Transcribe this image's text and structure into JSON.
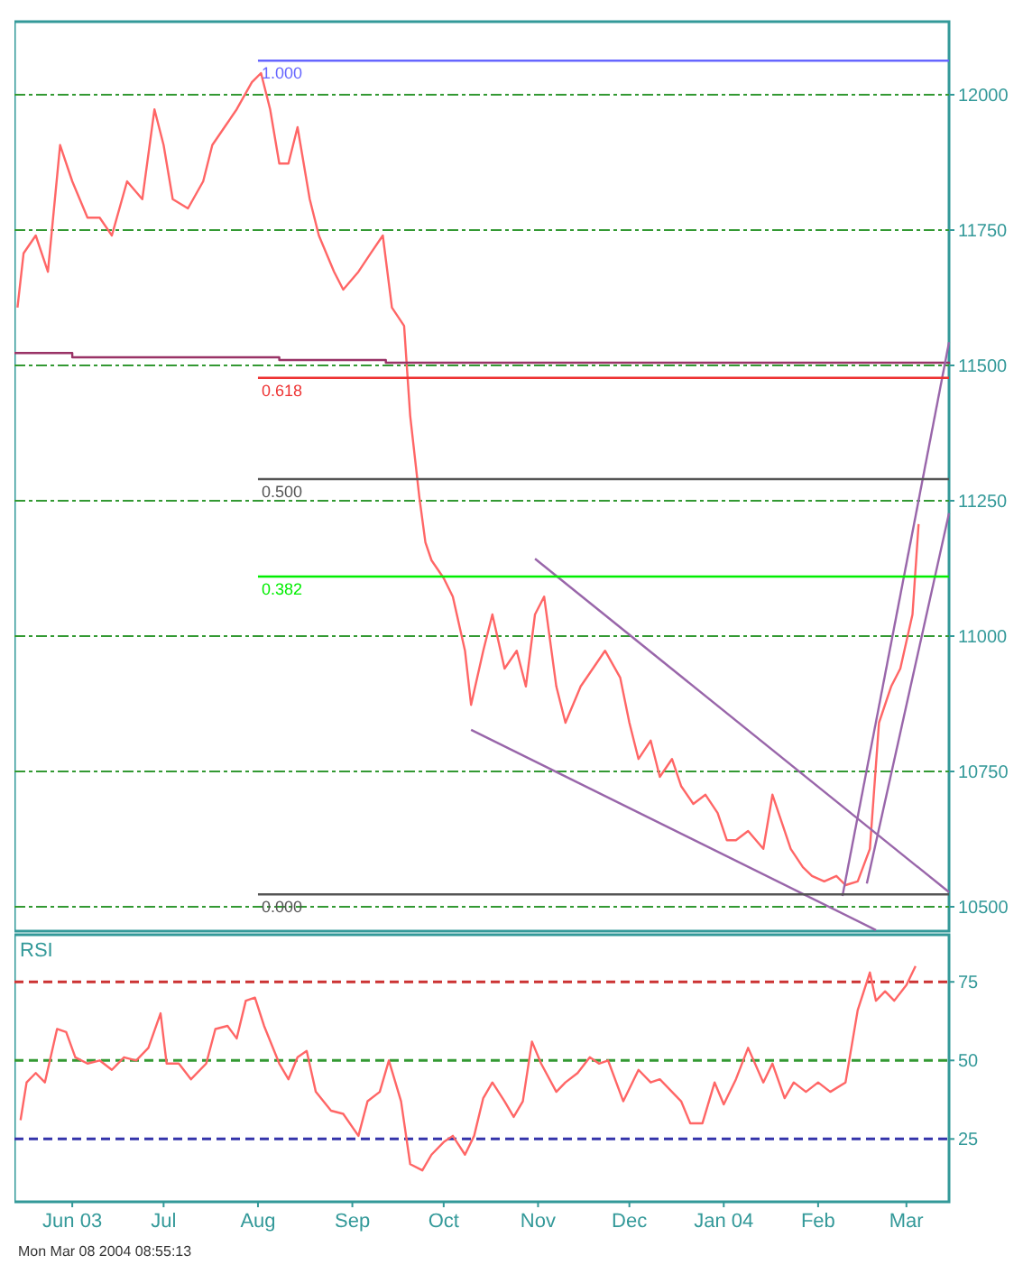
{
  "chart_data": [
    {
      "type": "line",
      "xlim": [
        "2003-05-13",
        "2004-03-15"
      ],
      "ylim": [
        10455,
        12135
      ],
      "yticks": [
        10500,
        10750,
        11000,
        11250,
        11500,
        11750,
        12000
      ],
      "tick_labels": "y",
      "grid": "y",
      "series": [
        {
          "color": "#ff6666",
          "x": [
            "2003-05-14",
            "2003-05-16",
            "2003-05-20",
            "2003-05-24",
            "2003-05-28",
            "2003-06-01",
            "2003-06-06",
            "2003-06-10",
            "2003-06-14",
            "2003-06-19",
            "2003-06-24",
            "2003-06-28",
            "2003-07-01",
            "2003-07-04",
            "2003-07-09",
            "2003-07-14",
            "2003-07-17",
            "2003-07-21",
            "2003-07-25",
            "2003-07-30",
            "2003-08-02",
            "2003-08-05",
            "2003-08-08",
            "2003-08-11",
            "2003-08-14",
            "2003-08-18",
            "2003-08-21",
            "2003-08-26",
            "2003-08-29",
            "2003-09-03",
            "2003-09-07",
            "2003-09-11",
            "2003-09-14",
            "2003-09-18",
            "2003-09-20",
            "2003-09-23",
            "2003-09-25",
            "2003-09-27",
            "2003-10-01",
            "2003-10-04",
            "2003-10-08",
            "2003-10-10",
            "2003-10-14",
            "2003-10-17",
            "2003-10-21",
            "2003-10-25",
            "2003-10-28",
            "2003-10-31",
            "2003-11-03",
            "2003-11-07",
            "2003-11-10",
            "2003-11-15",
            "2003-11-19",
            "2003-11-23",
            "2003-11-28",
            "2003-12-01",
            "2003-12-04",
            "2003-12-08",
            "2003-12-11",
            "2003-12-15",
            "2003-12-18",
            "2003-12-22",
            "2003-12-26",
            "2003-12-30",
            "2004-01-02",
            "2004-01-05",
            "2004-01-09",
            "2004-01-14",
            "2004-01-17",
            "2004-01-20",
            "2004-01-23",
            "2004-01-27",
            "2004-01-30",
            "2004-02-03",
            "2004-02-07",
            "2004-02-10",
            "2004-02-14",
            "2004-02-18",
            "2004-02-21",
            "2004-02-25",
            "2004-02-28",
            "2004-03-03",
            "2004-03-05"
          ],
          "values": [
            11607,
            11707,
            11740,
            11673,
            11907,
            11840,
            11773,
            11773,
            11740,
            11840,
            11807,
            11973,
            11907,
            11807,
            11790,
            11840,
            11907,
            11940,
            11973,
            12023,
            12040,
            11973,
            11873,
            11873,
            11940,
            11807,
            11740,
            11673,
            11640,
            11673,
            11707,
            11740,
            11607,
            11573,
            11407,
            11257,
            11173,
            11140,
            11107,
            11073,
            10973,
            10873,
            10973,
            11040,
            10940,
            10973,
            10907,
            11040,
            11073,
            10907,
            10840,
            10907,
            10940,
            10973,
            10923,
            10840,
            10773,
            10807,
            10740,
            10773,
            10723,
            10690,
            10707,
            10673,
            10623,
            10623,
            10640,
            10607,
            10707,
            10657,
            10607,
            10573,
            10557,
            10547,
            10557,
            10540,
            10547,
            10607,
            10840,
            10907,
            10940,
            11040,
            11207
          ]
        },
        {
          "type": "step",
          "color": "#993366",
          "x": [
            "2003-05-13",
            "2003-06-01",
            "2003-08-08",
            "2003-09-12",
            "2004-03-15"
          ],
          "values": [
            11523,
            11515,
            11510,
            11505,
            11503
          ]
        },
        {
          "color": "#9966aa",
          "x": [
            "2003-10-31",
            "2004-03-15"
          ],
          "values": [
            11143,
            10527
          ]
        },
        {
          "color": "#9966aa",
          "x": [
            "2003-10-10",
            "2004-02-20"
          ],
          "values": [
            10827,
            10457
          ]
        },
        {
          "color": "#9966aa",
          "x": [
            "2004-02-09",
            "2004-03-15"
          ],
          "values": [
            10520,
            11543
          ]
        },
        {
          "color": "#9966aa",
          "x": [
            "2004-02-17",
            "2004-03-15"
          ],
          "values": [
            10543,
            11227
          ]
        },
        {
          "type": "line",
          "color": "#6666ff",
          "x": [
            "2003-08-01",
            "2004-03-15"
          ],
          "values": [
            12063,
            12063
          ]
        },
        {
          "type": "line",
          "color": "#ee3333",
          "x": [
            "2003-08-01",
            "2004-03-15"
          ],
          "values": [
            11477,
            11477
          ]
        },
        {
          "type": "line",
          "color": "#555555",
          "x": [
            "2003-08-01",
            "2004-03-15"
          ],
          "values": [
            11290,
            11290
          ]
        },
        {
          "type": "line",
          "color": "#00ee00",
          "x": [
            "2003-08-01",
            "2004-03-15"
          ],
          "values": [
            11110,
            11110
          ]
        },
        {
          "type": "line",
          "color": "#555555",
          "x": [
            "2003-08-01",
            "2004-03-15"
          ],
          "values": [
            10523,
            10523
          ]
        }
      ],
      "annotations": [
        {
          "text": "1.000",
          "x": "2003-08-01",
          "y": 12063
        },
        {
          "text": "0.618",
          "x": "2003-08-01",
          "y": 11477
        },
        {
          "text": "0.500",
          "x": "2003-08-01",
          "y": 11290
        },
        {
          "text": "0.382",
          "x": "2003-08-01",
          "y": 11110
        },
        {
          "text": "0.000",
          "x": "2003-08-01",
          "y": 10523
        }
      ]
    },
    {
      "type": "line",
      "title": "RSI",
      "xlim": [
        "2003-05-13",
        "2004-03-15"
      ],
      "xticks": [
        {
          "value": "2003-06-01",
          "label": "Jun 03"
        },
        {
          "value": "2003-07-01",
          "label": "Jul"
        },
        {
          "value": "2003-08-01",
          "label": "Aug"
        },
        {
          "value": "2003-09-01",
          "label": "Sep"
        },
        {
          "value": "2003-10-01",
          "label": "Oct"
        },
        {
          "value": "2003-11-01",
          "label": "Nov"
        },
        {
          "value": "2003-12-01",
          "label": "Dec"
        },
        {
          "value": "2004-01-01",
          "label": "Jan 04"
        },
        {
          "value": "2004-02-01",
          "label": "Feb"
        },
        {
          "value": "2004-03-01",
          "label": "Mar"
        }
      ],
      "ylim": [
        5,
        90
      ],
      "yticks": [
        25,
        50,
        75
      ],
      "series": [
        {
          "color": "#ff6666",
          "x": [
            "2003-05-15",
            "2003-05-17",
            "2003-05-20",
            "2003-05-23",
            "2003-05-27",
            "2003-05-30",
            "2003-06-02",
            "2003-06-06",
            "2003-06-10",
            "2003-06-14",
            "2003-06-18",
            "2003-06-22",
            "2003-06-26",
            "2003-06-30",
            "2003-07-02",
            "2003-07-06",
            "2003-07-10",
            "2003-07-15",
            "2003-07-18",
            "2003-07-22",
            "2003-07-25",
            "2003-07-28",
            "2003-07-31",
            "2003-08-03",
            "2003-08-08",
            "2003-08-11",
            "2003-08-14",
            "2003-08-17",
            "2003-08-20",
            "2003-08-25",
            "2003-08-29",
            "2003-09-03",
            "2003-09-06",
            "2003-09-10",
            "2003-09-13",
            "2003-09-17",
            "2003-09-20",
            "2003-09-24",
            "2003-09-27",
            "2003-10-01",
            "2003-10-04",
            "2003-10-08",
            "2003-10-11",
            "2003-10-14",
            "2003-10-17",
            "2003-10-21",
            "2003-10-24",
            "2003-10-27",
            "2003-10-30",
            "2003-11-02",
            "2003-11-07",
            "2003-11-10",
            "2003-11-14",
            "2003-11-18",
            "2003-11-21",
            "2003-11-24",
            "2003-11-29",
            "2003-12-04",
            "2003-12-08",
            "2003-12-11",
            "2003-12-15",
            "2003-12-18",
            "2003-12-21",
            "2003-12-25",
            "2003-12-29",
            "2004-01-01",
            "2004-01-05",
            "2004-01-09",
            "2004-01-14",
            "2004-01-17",
            "2004-01-21",
            "2004-01-24",
            "2004-01-28",
            "2004-02-01",
            "2004-02-05",
            "2004-02-10",
            "2004-02-14",
            "2004-02-18",
            "2004-02-20",
            "2004-02-23",
            "2004-02-26",
            "2004-03-01",
            "2004-03-04"
          ],
          "values": [
            31,
            43,
            46,
            43,
            60,
            59,
            51,
            49,
            50,
            47,
            51,
            50,
            54,
            65,
            49,
            49,
            44,
            49,
            60,
            61,
            57,
            69,
            70,
            61,
            49,
            44,
            51,
            53,
            40,
            34,
            33,
            26,
            37,
            40,
            50,
            37,
            17,
            15,
            20,
            24,
            26,
            20,
            26,
            38,
            43,
            37,
            32,
            37,
            56,
            49,
            40,
            43,
            46,
            51,
            49,
            50,
            37,
            47,
            43,
            44,
            40,
            37,
            30,
            30,
            43,
            36,
            44,
            54,
            43,
            49,
            38,
            43,
            40,
            43,
            40,
            43,
            66,
            78,
            69,
            72,
            69,
            74,
            80
          ]
        }
      ],
      "ref_lines": [
        {
          "axis": "y",
          "value": 75,
          "color": "#cc3333",
          "line_style": "dashed"
        },
        {
          "axis": "y",
          "value": 50,
          "color": "#339933",
          "line_style": "dashed"
        },
        {
          "axis": "y",
          "value": 25,
          "color": "#3333aa",
          "line_style": "dashed"
        }
      ],
      "annotations": [
        "Mon Mar 08 2004 08:55:13"
      ]
    }
  ]
}
